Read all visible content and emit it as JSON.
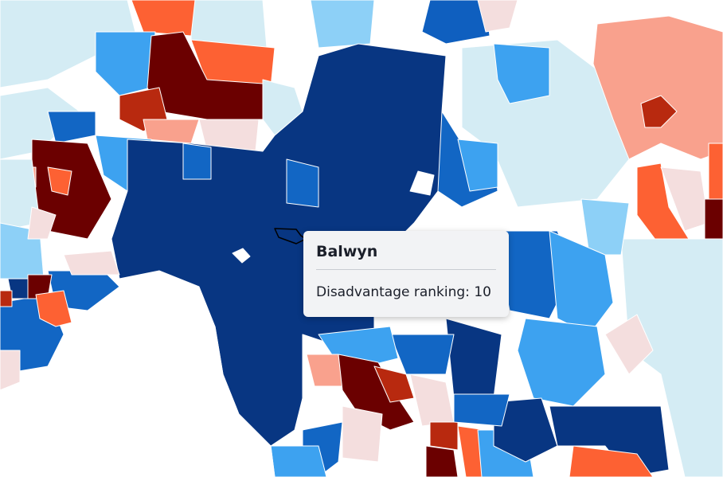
{
  "tooltip": {
    "title": "Balwyn",
    "label": "Disadvantage ranking:",
    "value": 10
  }
}
